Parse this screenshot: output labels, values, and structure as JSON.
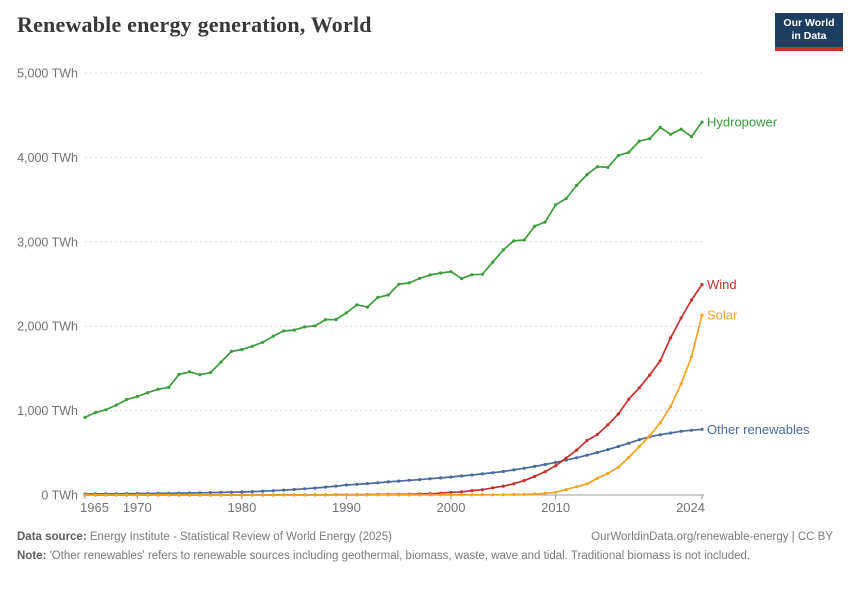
{
  "header": {
    "title": "Renewable energy generation, World",
    "logo": {
      "line1": "Our World",
      "line2": "in Data",
      "bg_color": "#1d3d63",
      "bar_color": "#c5342b"
    }
  },
  "chart_data": {
    "type": "line",
    "title": "Renewable energy generation, World",
    "xlabel": "",
    "ylabel": "TWh",
    "xlim": [
      1965,
      2024
    ],
    "ylim": [
      0,
      5000
    ],
    "grid": "dashed-horizontal",
    "legend_position": "line-end-labels",
    "xticks": [
      1965,
      1970,
      1980,
      1990,
      2000,
      2010,
      2024
    ],
    "yticks": [
      {
        "value": 0,
        "label": "0 TWh"
      },
      {
        "value": 1000,
        "label": "1,000 TWh"
      },
      {
        "value": 2000,
        "label": "2,000 TWh"
      },
      {
        "value": 3000,
        "label": "3,000 TWh"
      },
      {
        "value": 4000,
        "label": "4,000 TWh"
      },
      {
        "value": 5000,
        "label": "5,000 TWh"
      }
    ],
    "x": [
      1965,
      1966,
      1967,
      1968,
      1969,
      1970,
      1971,
      1972,
      1973,
      1974,
      1975,
      1976,
      1977,
      1978,
      1979,
      1980,
      1981,
      1982,
      1983,
      1984,
      1985,
      1986,
      1987,
      1988,
      1989,
      1990,
      1991,
      1992,
      1993,
      1994,
      1995,
      1996,
      1997,
      1998,
      1999,
      2000,
      2001,
      2002,
      2003,
      2004,
      2005,
      2006,
      2007,
      2008,
      2009,
      2010,
      2011,
      2012,
      2013,
      2014,
      2015,
      2016,
      2017,
      2018,
      2019,
      2020,
      2021,
      2022,
      2023,
      2024
    ],
    "draw_order": [
      "Hydropower",
      "Other renewables",
      "Wind",
      "Solar"
    ],
    "series": [
      {
        "name": "Hydropower",
        "color": "#3c9c3c",
        "values": [
          919,
          978,
          1009,
          1066,
          1131,
          1166,
          1212,
          1253,
          1275,
          1430,
          1459,
          1425,
          1450,
          1575,
          1701,
          1723,
          1763,
          1809,
          1882,
          1944,
          1954,
          1992,
          2004,
          2078,
          2079,
          2159,
          2253,
          2226,
          2341,
          2370,
          2497,
          2513,
          2566,
          2607,
          2630,
          2647,
          2564,
          2610,
          2615,
          2759,
          2904,
          3012,
          3021,
          3185,
          3233,
          3437,
          3512,
          3667,
          3796,
          3890,
          3882,
          4023,
          4060,
          4193,
          4222,
          4355,
          4274,
          4334,
          4247,
          4418
        ]
      },
      {
        "name": "Wind",
        "color": "#c5302b",
        "values": [
          0,
          0,
          0,
          0,
          0,
          0,
          0,
          0,
          0,
          0,
          0,
          0,
          0,
          0,
          0,
          0,
          0.1,
          0.2,
          0.3,
          0.6,
          1.0,
          1.5,
          2.2,
          2.6,
          3.2,
          3.9,
          4.1,
          4.7,
          5.8,
          7.2,
          8.3,
          9.4,
          12.0,
          15.9,
          21.2,
          31.4,
          38.4,
          52.3,
          62.9,
          85.1,
          104.1,
          132.9,
          170.7,
          220.6,
          275.9,
          345.9,
          436.8,
          530.7,
          645.7,
          717.1,
          831.8,
          959.5,
          1136.8,
          1269.9,
          1420.6,
          1590.2,
          1861.9,
          2096.8,
          2310.6,
          2494.0
        ]
      },
      {
        "name": "Solar",
        "color": "#f4a325",
        "values": [
          0,
          0,
          0,
          0,
          0,
          0,
          0,
          0,
          0,
          0,
          0,
          0,
          0,
          0,
          0,
          0,
          0,
          0,
          0,
          0,
          0,
          0,
          0,
          0,
          0,
          0.4,
          0.5,
          0.5,
          0.6,
          0.6,
          0.7,
          0.7,
          0.8,
          0.9,
          1.0,
          1.1,
          1.4,
          1.7,
          2.1,
          2.8,
          4.0,
          5.4,
          7.4,
          11.9,
          20.1,
          32.2,
          63.6,
          97.0,
          132.0,
          197.7,
          256.1,
          328.1,
          445.1,
          574.2,
          703.1,
          853.7,
          1048.5,
          1315.9,
          1637.9,
          2131.0
        ]
      },
      {
        "name": "Other renewables",
        "color": "#4c6a9c",
        "values": [
          11.6,
          12.5,
          13.4,
          14.4,
          15.4,
          16.5,
          17.8,
          19.2,
          20.7,
          22.3,
          24.0,
          26.0,
          28.1,
          30.4,
          33.0,
          35.7,
          40.3,
          45.4,
          51.2,
          57.8,
          65.2,
          73.5,
          82.9,
          93.5,
          105.4,
          118.9,
          127.0,
          135.6,
          144.8,
          154.7,
          165.2,
          173.9,
          183.0,
          192.6,
          202.7,
          213.4,
          225.0,
          237.2,
          250.1,
          263.7,
          278.1,
          297.0,
          317.2,
          338.8,
          361.9,
          386.6,
          413.0,
          441.2,
          471.3,
          503.5,
          537.9,
          574.6,
          613.8,
          655.7,
          690.0,
          715.0,
          735.0,
          755.0,
          768.0,
          779.0
        ]
      }
    ],
    "axis_colors": {
      "grid": "#dcdcdc",
      "axis": "#9e9e9e",
      "tick_label": "#737373"
    }
  },
  "footer": {
    "datasource_label": "Data source:",
    "datasource": "Energy Institute - Statistical Review of World Energy (2025)",
    "link": "OurWorldinData.org/renewable-energy | CC BY",
    "note_label": "Note:",
    "note": "'Other renewables' refers to renewable sources including geothermal, biomass, waste, wave and tidal. Traditional biomass is not included."
  }
}
